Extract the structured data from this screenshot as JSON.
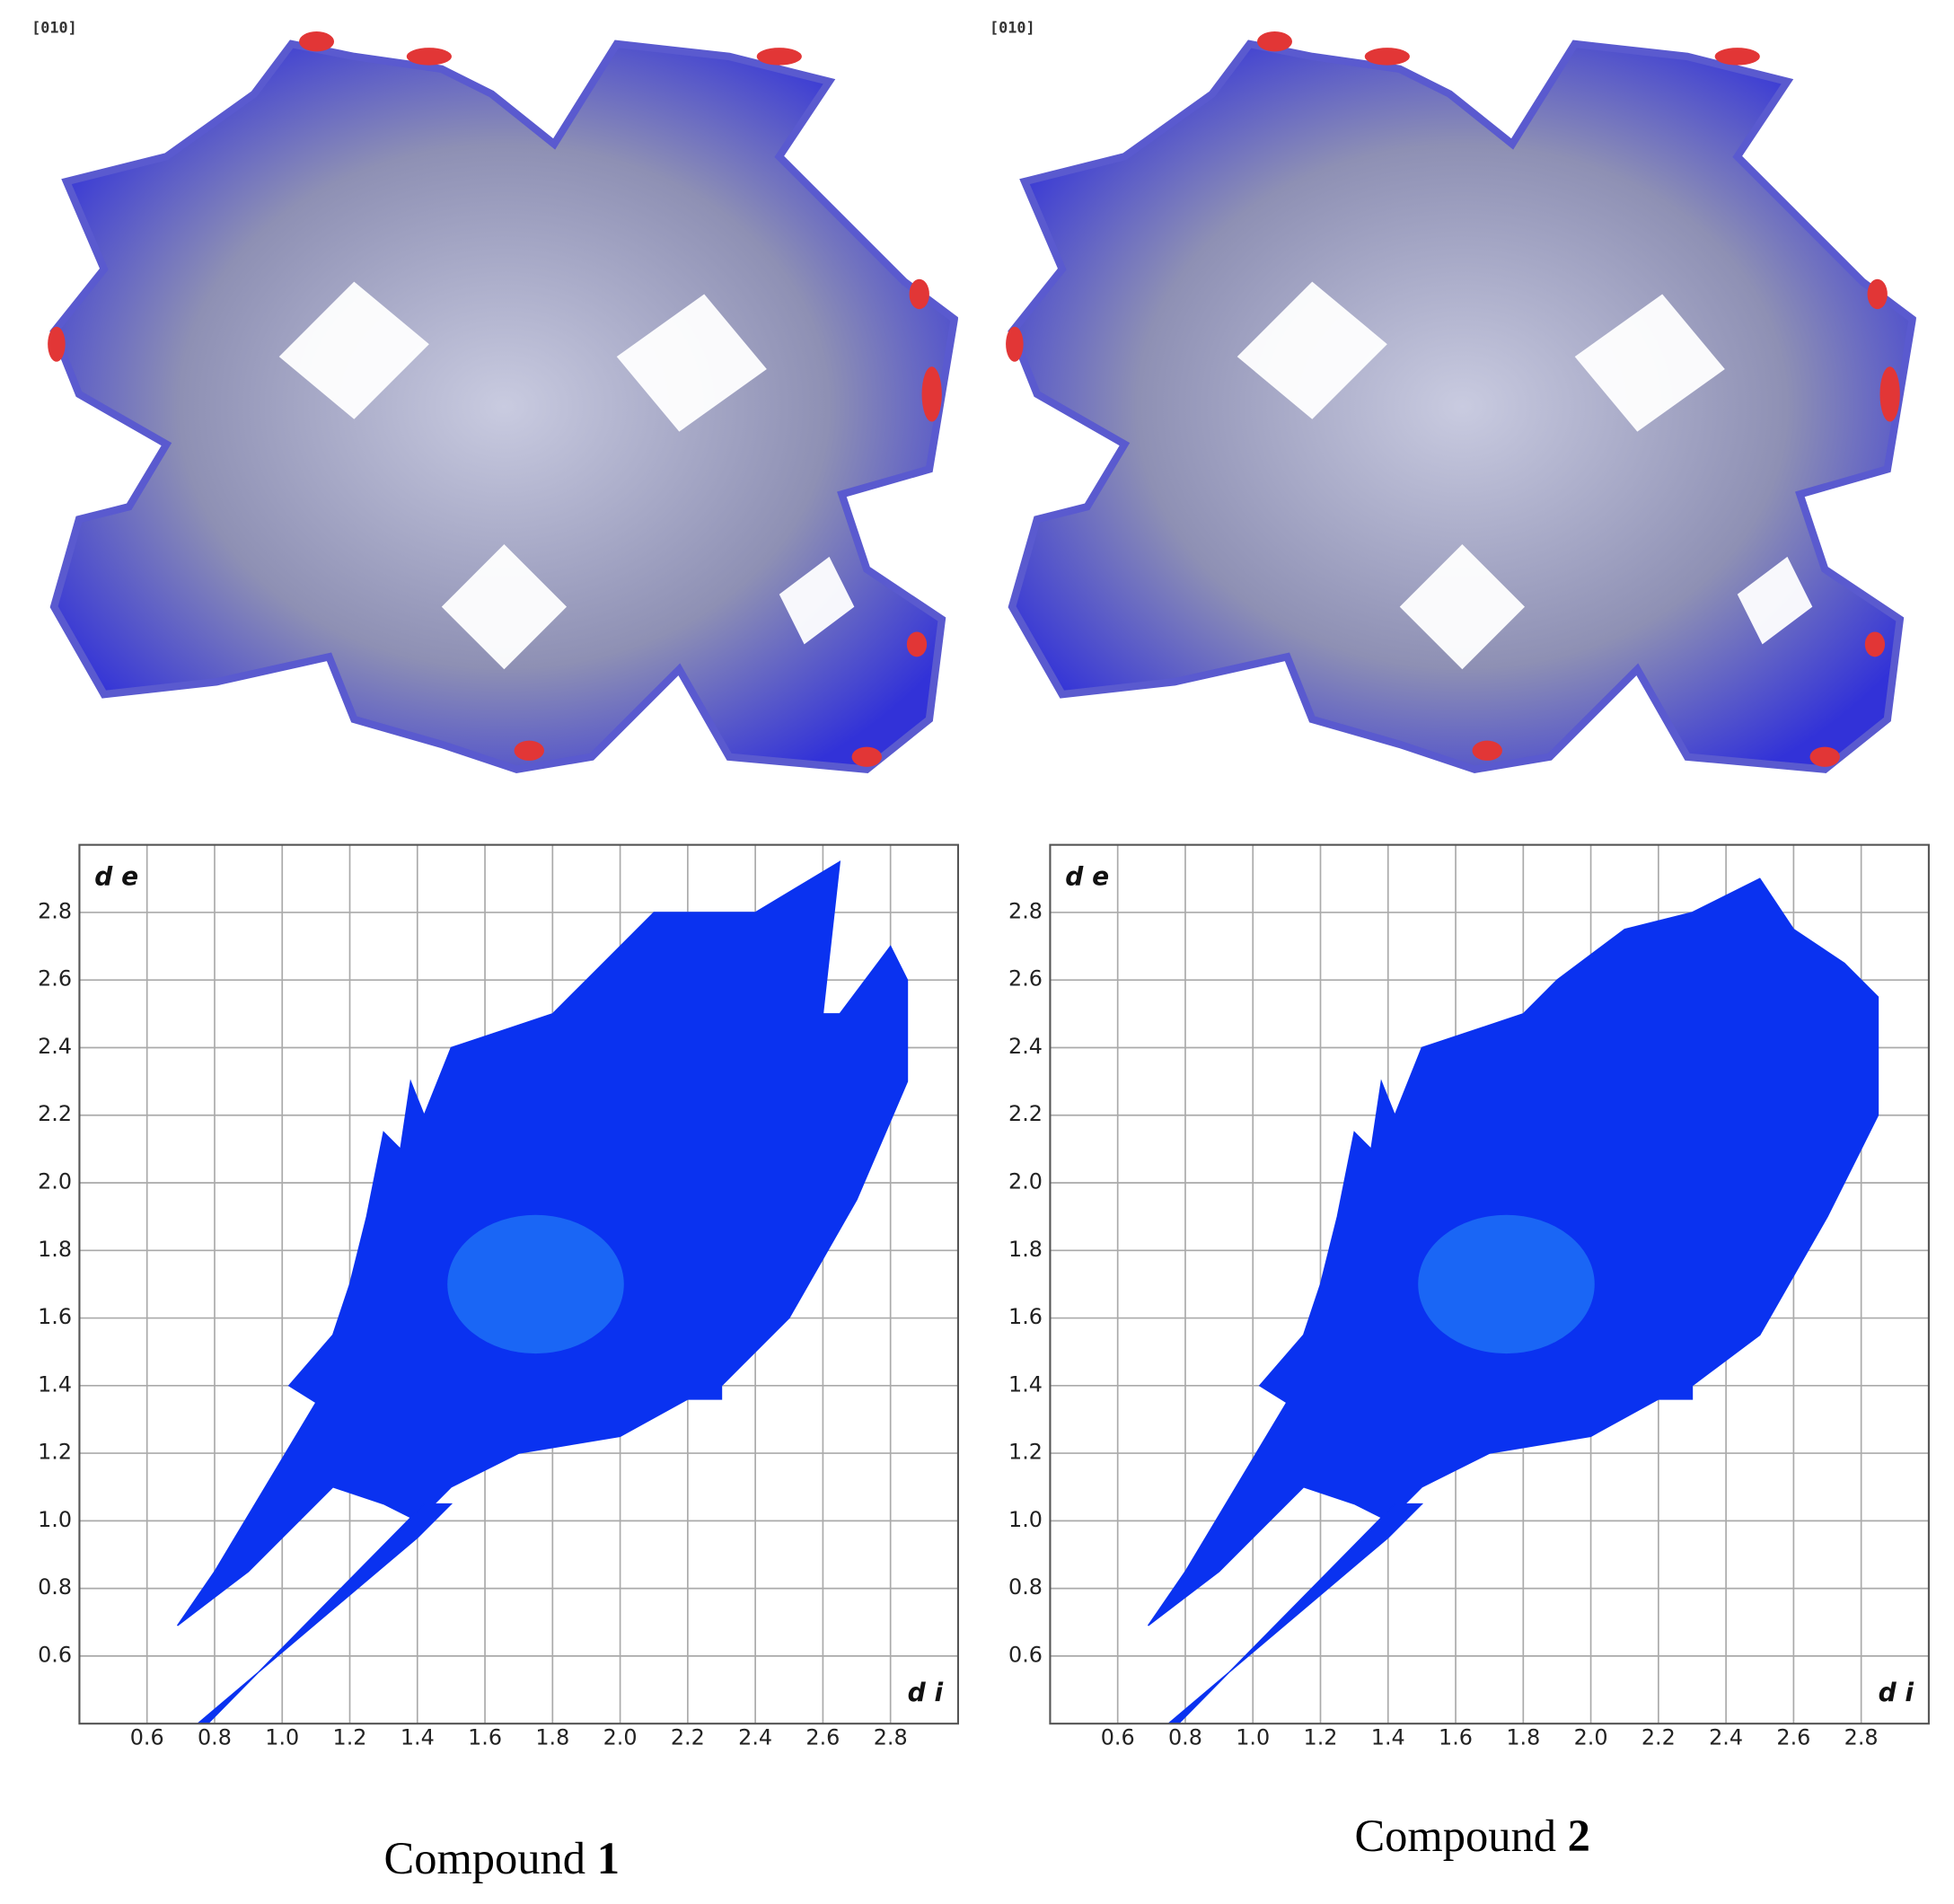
{
  "chart_data": [
    {
      "type": "fingerprint",
      "view_label": "[010]",
      "caption": "Compound",
      "caption_number": "1",
      "xlabel": "d i",
      "ylabel": "d e",
      "xlim": [
        0.4,
        3.0
      ],
      "ylim": [
        0.4,
        3.0
      ],
      "grid": true,
      "xticks": [
        0.6,
        0.8,
        {
          "value": 1,
          "label": "1.0"
        },
        1.2,
        1.4,
        1.6,
        1.8,
        {
          "value": 2,
          "label": "2.0"
        },
        2.2,
        2.4,
        2.6,
        2.8
      ],
      "yticks": [
        0.6,
        0.8,
        {
          "value": 1,
          "label": "1.0"
        },
        1.2,
        1.4,
        1.6,
        1.8,
        {
          "value": 2,
          "label": "2.0"
        },
        2.2,
        2.4,
        2.6,
        2.8
      ],
      "series": [
        {
          "color": "#0a32f0",
          "x": [
            0.69,
            0.9,
            1.15,
            1.3,
            1.4,
            1.5,
            1.7,
            2.0,
            2.2,
            2.3,
            2.3,
            2.5,
            2.7,
            2.85,
            2.85,
            2.8,
            2.65,
            2.6,
            2.65,
            2.4,
            2.1,
            1.9,
            1.8,
            1.65,
            1.5,
            1.42,
            1.38,
            1.35,
            1.3,
            1.25,
            1.2,
            1.15,
            1.02,
            1.1,
            0.95,
            0.8
          ],
          "y": [
            0.69,
            0.85,
            1.1,
            1.05,
            1.0,
            1.1,
            1.2,
            1.25,
            1.36,
            1.36,
            1.4,
            1.6,
            1.95,
            2.3,
            2.6,
            2.7,
            2.5,
            2.5,
            2.95,
            2.8,
            2.8,
            2.6,
            2.5,
            2.45,
            2.4,
            2.2,
            2.3,
            2.1,
            2.15,
            1.9,
            1.7,
            1.55,
            1.4,
            1.35,
            1.1,
            0.85
          ]
        },
        {
          "color": "#0a32f0",
          "x": [
            0.75,
            1.4,
            1.5,
            1.42,
            0.78
          ],
          "y": [
            0.4,
            0.95,
            1.05,
            1.05,
            0.4
          ]
        }
      ]
    },
    {
      "type": "fingerprint",
      "view_label": "[010]",
      "caption": "Compound",
      "caption_number": "2",
      "xlabel": "d i",
      "ylabel": "d e",
      "xlim": [
        0.4,
        3.0
      ],
      "ylim": [
        0.4,
        3.0
      ],
      "grid": true,
      "xticks": [
        0.6,
        0.8,
        {
          "value": 1,
          "label": "1.0"
        },
        1.2,
        1.4,
        1.6,
        1.8,
        {
          "value": 2,
          "label": "2.0"
        },
        2.2,
        2.4,
        2.6,
        2.8
      ],
      "yticks": [
        0.6,
        0.8,
        {
          "value": 1,
          "label": "1.0"
        },
        1.2,
        1.4,
        1.6,
        1.8,
        {
          "value": 2,
          "label": "2.0"
        },
        2.2,
        2.4,
        2.6,
        2.8
      ],
      "series": [
        {
          "color": "#0a32f0",
          "x": [
            0.69,
            0.9,
            1.15,
            1.3,
            1.4,
            1.5,
            1.7,
            2.0,
            2.2,
            2.3,
            2.3,
            2.5,
            2.7,
            2.85,
            2.85,
            2.75,
            2.6,
            2.5,
            2.3,
            2.1,
            1.9,
            1.8,
            1.65,
            1.5,
            1.42,
            1.38,
            1.35,
            1.3,
            1.25,
            1.2,
            1.15,
            1.02,
            1.1,
            0.95,
            0.8
          ],
          "y": [
            0.69,
            0.85,
            1.1,
            1.05,
            1.0,
            1.1,
            1.2,
            1.25,
            1.36,
            1.36,
            1.4,
            1.55,
            1.9,
            2.2,
            2.55,
            2.65,
            2.75,
            2.9,
            2.8,
            2.75,
            2.6,
            2.5,
            2.45,
            2.4,
            2.2,
            2.3,
            2.1,
            2.15,
            1.9,
            1.7,
            1.55,
            1.4,
            1.35,
            1.1,
            0.85
          ]
        },
        {
          "color": "#0a32f0",
          "x": [
            0.75,
            1.4,
            1.5,
            1.42,
            0.78
          ],
          "y": [
            0.4,
            0.95,
            1.05,
            1.05,
            0.4
          ]
        }
      ]
    }
  ]
}
